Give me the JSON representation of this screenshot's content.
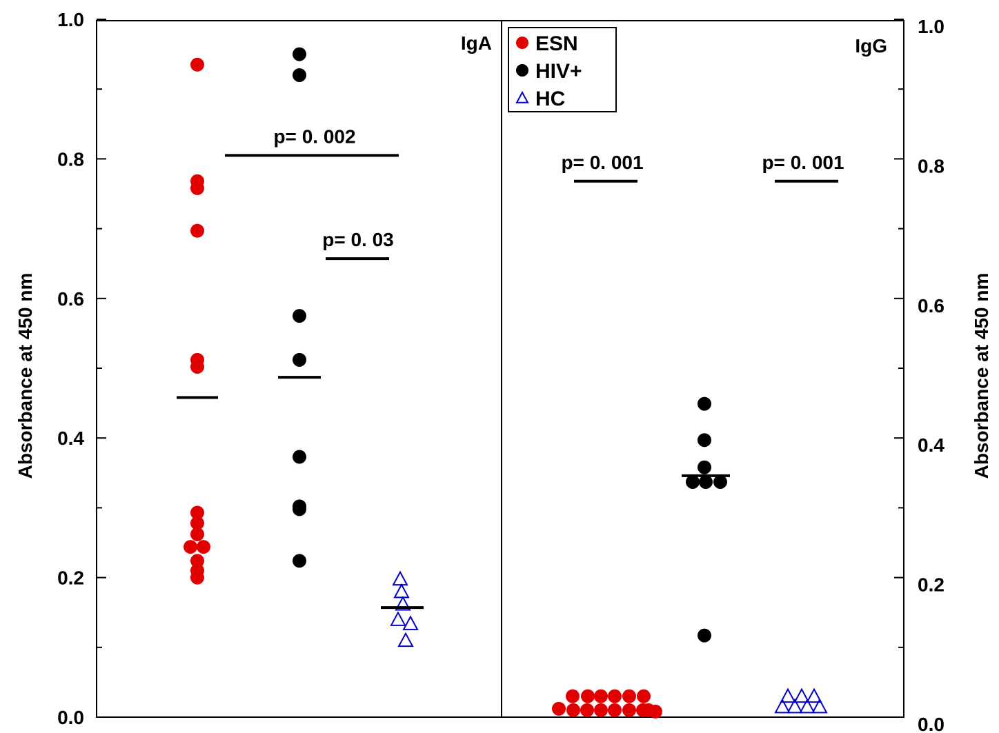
{
  "chart_data": [
    {
      "type": "scatter",
      "panel_label": "IgA",
      "ylabel": "Absorbance at 450 nm",
      "ylim": [
        0.0,
        1.0
      ],
      "yticks": [
        "0.0",
        "0.2",
        "0.4",
        "0.6",
        "0.8",
        "1.0"
      ],
      "y_axis_side": "left",
      "series": [
        {
          "name": "ESN",
          "values": [
            0.935,
            0.768,
            0.758,
            0.697,
            0.512,
            0.502,
            0.293,
            0.278,
            0.262,
            0.244,
            0.244,
            0.224,
            0.21,
            0.2
          ],
          "mean": 0.458
        },
        {
          "name": "HIV+",
          "values": [
            0.95,
            0.92,
            0.575,
            0.512,
            0.373,
            0.302,
            0.298,
            0.224
          ],
          "mean": 0.487
        },
        {
          "name": "HC",
          "values": [
            0.198,
            0.18,
            0.162,
            0.14,
            0.134,
            0.11
          ],
          "mean": 0.157
        }
      ],
      "comparisons": [
        {
          "label": "p=  0. 002",
          "y": 0.805,
          "from": "HIV+",
          "to": "HC"
        },
        {
          "label": "p=  0. 03",
          "y": 0.657,
          "from": "HIV+",
          "to": "HC"
        }
      ]
    },
    {
      "type": "scatter",
      "panel_label": "IgG",
      "ylabel": "Absorbance at 450 nm",
      "ylim": [
        0.0,
        1.0
      ],
      "yticks": [
        "0.0",
        "0.2",
        "0.4",
        "0.6",
        "0.8",
        "1.0"
      ],
      "y_axis_side": "right",
      "series": [
        {
          "name": "ESN",
          "values": [
            0.03,
            0.03,
            0.03,
            0.03,
            0.03,
            0.03,
            0.012,
            0.01,
            0.01,
            0.01,
            0.01,
            0.01,
            0.01,
            0.01,
            0.008
          ],
          "mean": null
        },
        {
          "name": "HIV+",
          "values": [
            0.449,
            0.397,
            0.358,
            0.337,
            0.337,
            0.337,
            0.117
          ],
          "mean": 0.346
        },
        {
          "name": "HC",
          "values": [
            0.03,
            0.03,
            0.03,
            0.015,
            0.015,
            0.015,
            0.015
          ],
          "mean": null
        }
      ],
      "comparisons": [
        {
          "label": "p=  0. 001",
          "y": 0.768,
          "from": "ESN",
          "to": "ESN"
        },
        {
          "label": "p=  0. 001",
          "y": 0.768,
          "from": "HC",
          "to": "HC"
        }
      ]
    }
  ],
  "legend": {
    "placement": "top-center",
    "items": [
      {
        "label": "ESN",
        "marker": "filled-circle",
        "color": "#e00000"
      },
      {
        "label": "HIV+",
        "marker": "filled-circle",
        "color": "#000000"
      },
      {
        "label": "HC",
        "marker": "open-triangle",
        "color": "#0000cc"
      }
    ]
  },
  "colors": {
    "esn": "#e00000",
    "hiv": "#000000",
    "hc": "#0000cc"
  }
}
